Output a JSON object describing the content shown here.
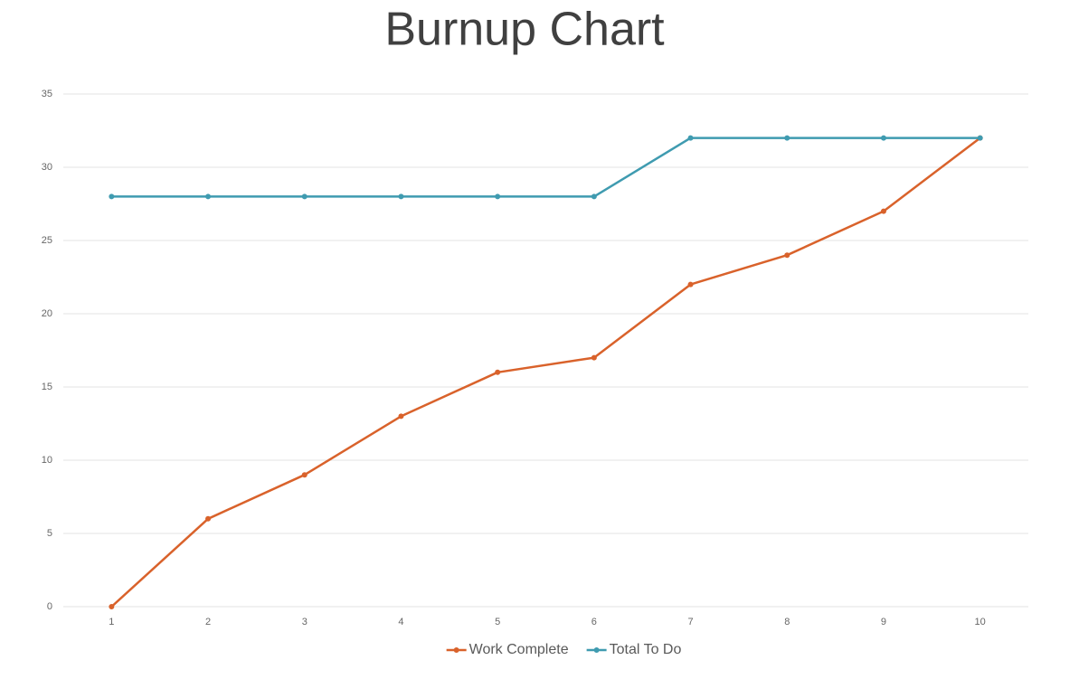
{
  "chart_data": {
    "type": "line",
    "title": "Burnup Chart",
    "categories": [
      "1",
      "2",
      "3",
      "4",
      "5",
      "6",
      "7",
      "8",
      "9",
      "10"
    ],
    "series": [
      {
        "name": "Work Complete",
        "color": "#d9622b",
        "values": [
          0,
          6,
          9,
          13,
          16,
          17,
          22,
          24,
          27,
          32
        ]
      },
      {
        "name": "Total To Do",
        "color": "#3f9bb0",
        "values": [
          28,
          28,
          28,
          28,
          28,
          28,
          32,
          32,
          32,
          32
        ]
      }
    ],
    "ylim": [
      0,
      35
    ],
    "yticks": [
      0,
      5,
      10,
      15,
      20,
      25,
      30,
      35
    ],
    "grid": true,
    "legend": "bottom"
  }
}
